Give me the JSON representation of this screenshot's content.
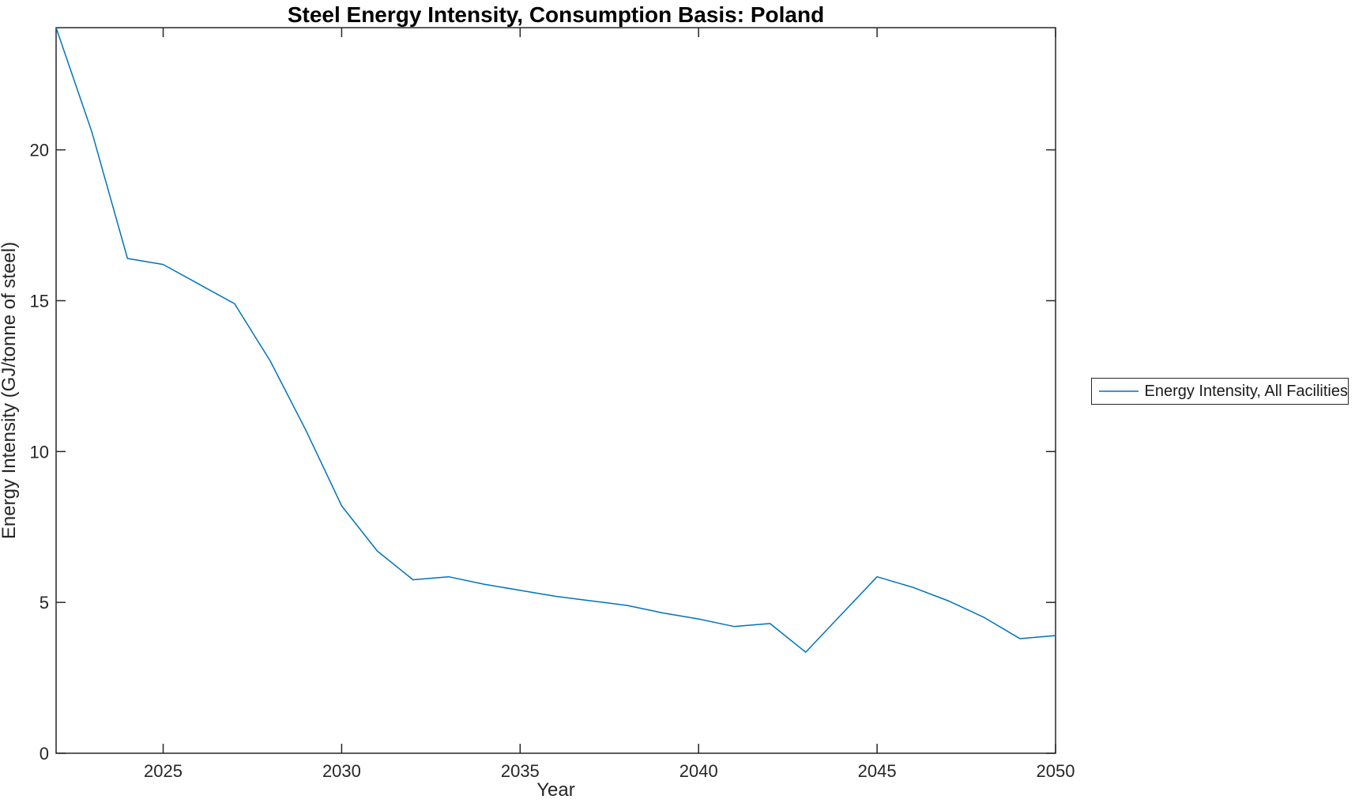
{
  "chart_data": {
    "type": "line",
    "title": "Steel Energy Intensity, Consumption Basis: Poland",
    "xlabel": "Year",
    "ylabel": "Energy Intensity (GJ/tonne of steel)",
    "xlim": [
      2022,
      2050
    ],
    "ylim": [
      0,
      24.05
    ],
    "xticks": [
      2025,
      2030,
      2035,
      2040,
      2045,
      2050
    ],
    "yticks": [
      0,
      5,
      10,
      15,
      20
    ],
    "grid": false,
    "legend_position": "outside-right",
    "line_color": "#0072BD",
    "axis_color": "#262626",
    "x": [
      2022,
      2023,
      2024,
      2025,
      2026,
      2027,
      2028,
      2029,
      2030,
      2031,
      2032,
      2033,
      2034,
      2035,
      2036,
      2037,
      2038,
      2039,
      2040,
      2041,
      2042,
      2043,
      2044,
      2045,
      2046,
      2047,
      2048,
      2049,
      2050
    ],
    "series": [
      {
        "name": "Energy Intensity, All Facilities",
        "values": [
          24.05,
          20.6,
          16.4,
          16.2,
          15.55,
          14.9,
          13.0,
          10.7,
          8.2,
          6.7,
          5.75,
          5.85,
          5.6,
          5.4,
          5.2,
          5.05,
          4.9,
          4.65,
          4.45,
          4.2,
          4.3,
          3.35,
          4.6,
          5.85,
          5.5,
          5.05,
          4.5,
          3.8,
          3.9
        ]
      }
    ]
  }
}
